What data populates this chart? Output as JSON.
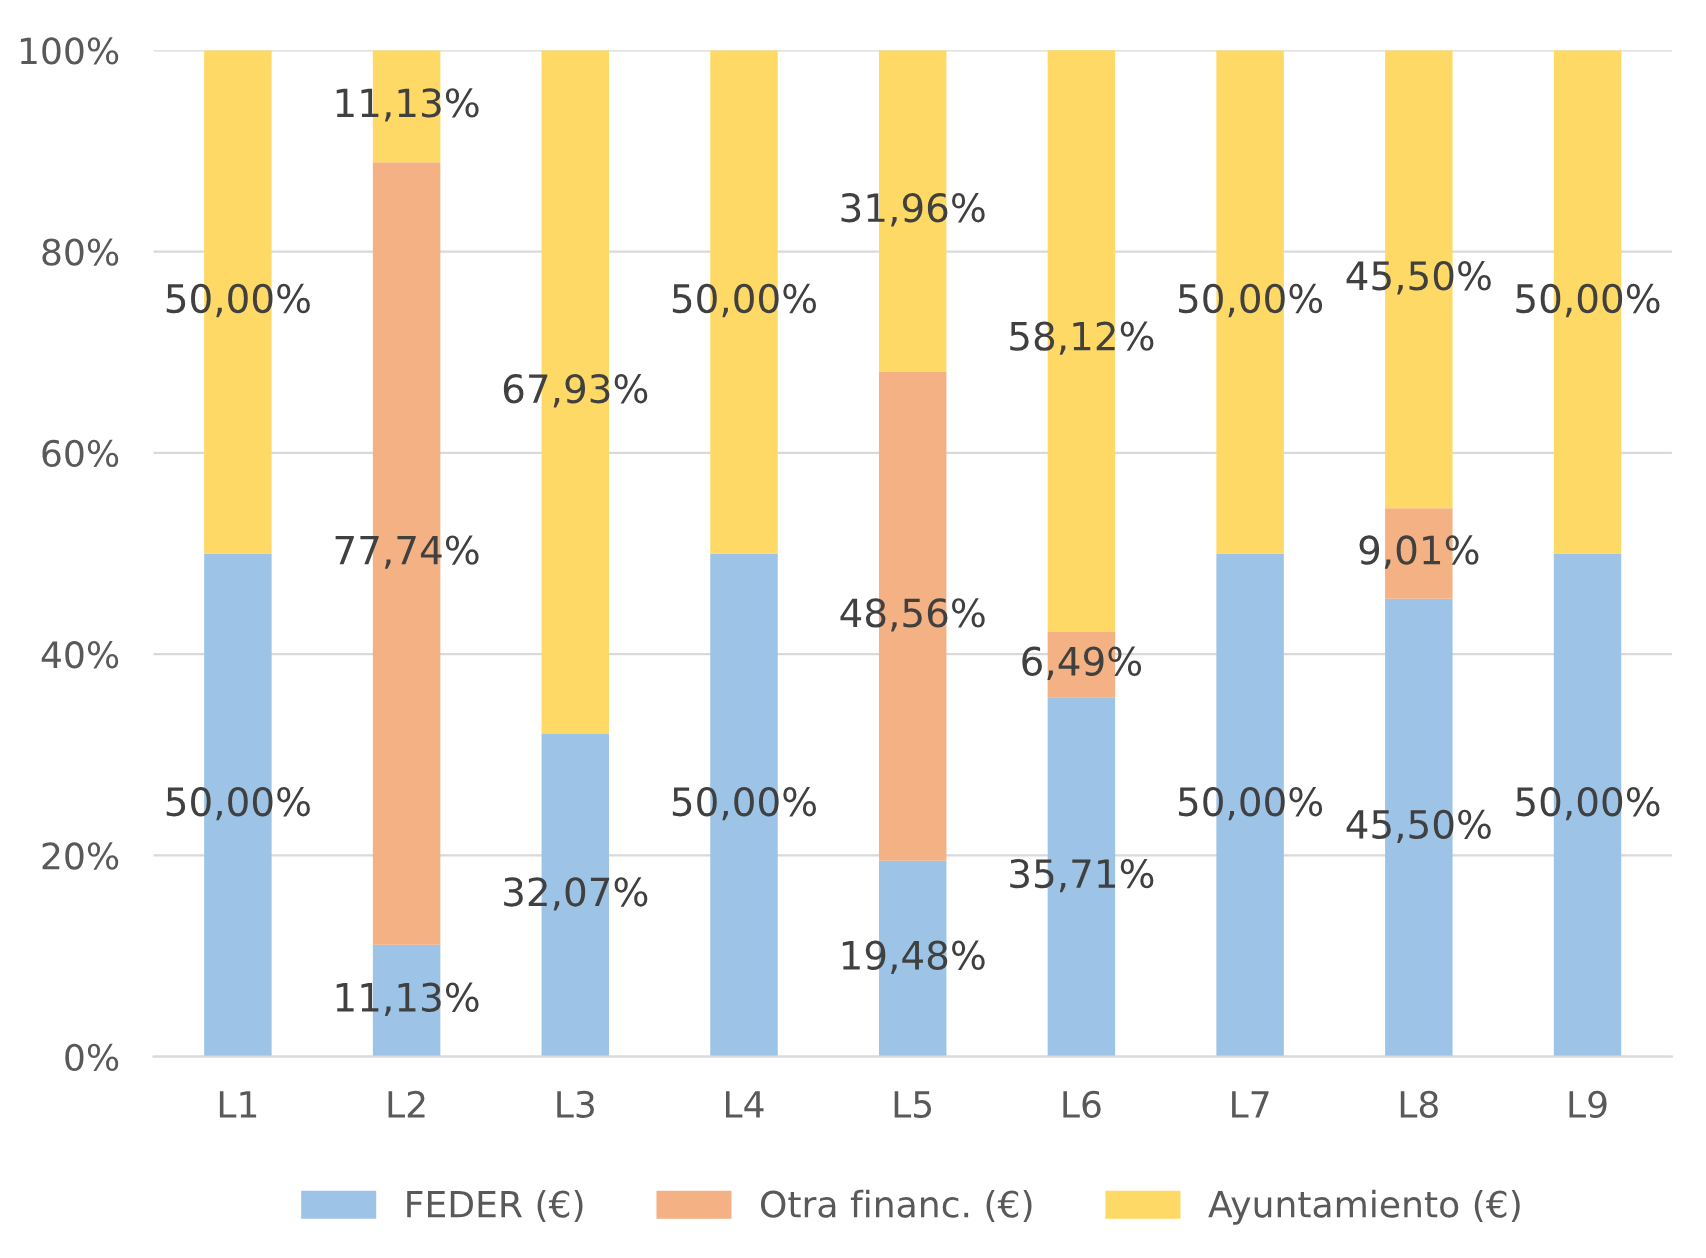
{
  "chart_data": {
    "type": "bar",
    "stacked": true,
    "categories": [
      "L1",
      "L2",
      "L3",
      "L4",
      "L5",
      "L6",
      "L7",
      "L8",
      "L9"
    ],
    "series": [
      {
        "name": "FEDER (€)",
        "color": "#9dc3e6",
        "values": [
          50.0,
          11.13,
          32.07,
          50.0,
          19.48,
          35.71,
          50.0,
          45.5,
          50.0
        ],
        "value_labels": [
          "50,00%",
          "11,13%",
          "32,07%",
          "50,00%",
          "19,48%",
          "35,71%",
          "50,00%",
          "45,50%",
          "50,00%"
        ]
      },
      {
        "name": "Otra financ. (€)",
        "color": "#f4b183",
        "values": [
          null,
          77.74,
          null,
          null,
          48.56,
          6.49,
          null,
          9.01,
          null
        ],
        "value_labels": [
          null,
          "77,74%",
          null,
          null,
          "48,56%",
          "6,49%",
          null,
          "9,01%",
          null
        ]
      },
      {
        "name": "Ayuntamiento (€)",
        "color": "#ffd966",
        "values": [
          50.0,
          11.13,
          67.93,
          50.0,
          31.96,
          58.12,
          50.0,
          45.5,
          50.0
        ],
        "value_labels": [
          "50,00%",
          "11,13%",
          "67,93%",
          "50,00%",
          "31,96%",
          "58,12%",
          "50,00%",
          "45,50%",
          "50,00%"
        ]
      }
    ],
    "ylim": [
      0,
      100
    ],
    "yticks": [
      {
        "value": 0,
        "label": "0%"
      },
      {
        "value": 20,
        "label": "20%"
      },
      {
        "value": 40,
        "label": "40%"
      },
      {
        "value": 60,
        "label": "60%"
      },
      {
        "value": 80,
        "label": "80%"
      },
      {
        "value": 100,
        "label": "100%"
      }
    ],
    "grid": "y",
    "legend": "bottom"
  }
}
